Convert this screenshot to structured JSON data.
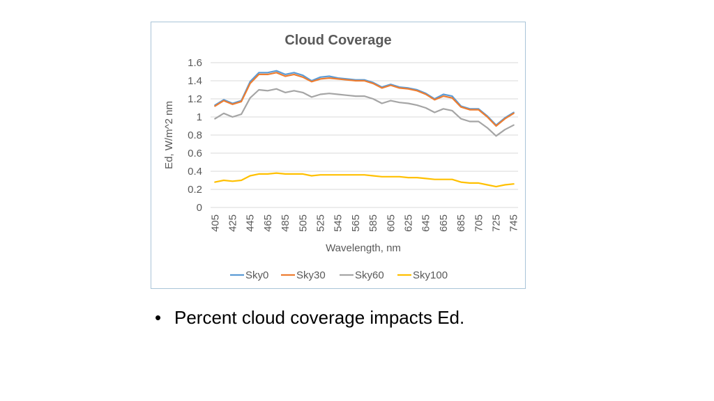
{
  "slide": {
    "bullet_symbol": "•",
    "bullet_text": "Percent cloud coverage impacts Ed."
  },
  "chart_data": {
    "type": "line",
    "title": "Cloud Coverage",
    "xlabel": "Wavelength, nm",
    "ylabel": "Ed, W/m^2 nm",
    "ylim": [
      0,
      1.6
    ],
    "yticks": [
      "0",
      "0.2",
      "0.4",
      "0.6",
      "0.8",
      "1",
      "1.2",
      "1.4",
      "1.6"
    ],
    "y_tick_values": [
      0,
      0.2,
      0.4,
      0.6,
      0.8,
      1,
      1.2,
      1.4,
      1.6
    ],
    "x": [
      405,
      415,
      425,
      435,
      445,
      455,
      465,
      475,
      485,
      495,
      505,
      515,
      525,
      535,
      545,
      555,
      565,
      575,
      585,
      595,
      605,
      615,
      625,
      635,
      645,
      655,
      665,
      675,
      685,
      695,
      705,
      715,
      725,
      735,
      745
    ],
    "x_tick_labels": [
      "405",
      "425",
      "445",
      "465",
      "485",
      "505",
      "525",
      "545",
      "565",
      "585",
      "605",
      "625",
      "645",
      "665",
      "685",
      "705",
      "725",
      "745"
    ],
    "grid": "horizontal",
    "legend_position": "bottom",
    "series": [
      {
        "name": "Sky0",
        "color": "#5b9bd5",
        "values": [
          1.13,
          1.19,
          1.15,
          1.18,
          1.39,
          1.49,
          1.49,
          1.51,
          1.47,
          1.49,
          1.46,
          1.4,
          1.44,
          1.45,
          1.43,
          1.42,
          1.41,
          1.41,
          1.38,
          1.33,
          1.36,
          1.33,
          1.32,
          1.3,
          1.26,
          1.2,
          1.25,
          1.23,
          1.12,
          1.09,
          1.09,
          1.01,
          0.91,
          0.99,
          1.05
        ]
      },
      {
        "name": "Sky30",
        "color": "#ed7d31",
        "values": [
          1.12,
          1.18,
          1.14,
          1.17,
          1.37,
          1.47,
          1.47,
          1.49,
          1.45,
          1.47,
          1.44,
          1.39,
          1.42,
          1.43,
          1.42,
          1.41,
          1.4,
          1.4,
          1.37,
          1.32,
          1.35,
          1.32,
          1.31,
          1.29,
          1.25,
          1.19,
          1.23,
          1.21,
          1.11,
          1.08,
          1.08,
          1.0,
          0.9,
          0.98,
          1.04
        ]
      },
      {
        "name": "Sky60",
        "color": "#a5a5a5",
        "values": [
          0.98,
          1.04,
          1.0,
          1.03,
          1.21,
          1.3,
          1.29,
          1.31,
          1.27,
          1.29,
          1.27,
          1.22,
          1.25,
          1.26,
          1.25,
          1.24,
          1.23,
          1.23,
          1.2,
          1.15,
          1.18,
          1.16,
          1.15,
          1.13,
          1.1,
          1.05,
          1.09,
          1.07,
          0.98,
          0.95,
          0.95,
          0.88,
          0.79,
          0.86,
          0.91
        ]
      },
      {
        "name": "Sky100",
        "color": "#ffc000",
        "values": [
          0.28,
          0.3,
          0.29,
          0.3,
          0.35,
          0.37,
          0.37,
          0.38,
          0.37,
          0.37,
          0.37,
          0.35,
          0.36,
          0.36,
          0.36,
          0.36,
          0.36,
          0.36,
          0.35,
          0.34,
          0.34,
          0.34,
          0.33,
          0.33,
          0.32,
          0.31,
          0.31,
          0.31,
          0.28,
          0.27,
          0.27,
          0.25,
          0.23,
          0.25,
          0.26
        ]
      }
    ]
  }
}
